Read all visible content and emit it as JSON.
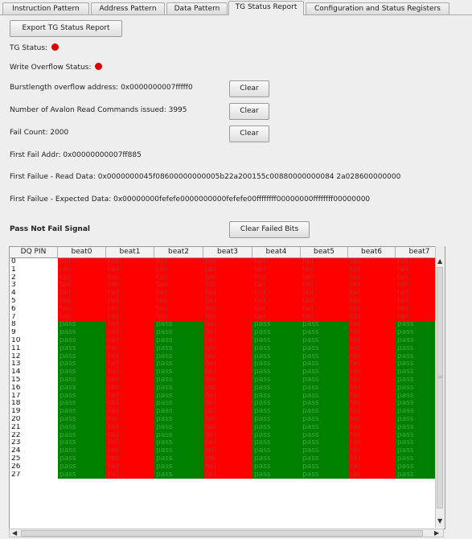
{
  "tabs": [
    {
      "label": "Instruction Pattern"
    },
    {
      "label": "Address Pattern"
    },
    {
      "label": "Data Pattern"
    },
    {
      "label": "TG Status Report"
    },
    {
      "label": "Configuration and Status Registers"
    }
  ],
  "active_tab": "TG Status Report",
  "export_button": "Export TG Status Report",
  "tg_status_label": "TG Status:",
  "tg_status_color": "#dd0000",
  "write_overflow_label": "Write Overflow Status:",
  "write_overflow_color": "#dd0000",
  "burst_label": "Burstlength overflow address: 0x0000000007fffff0",
  "avalon_label": "Number of Avalon Read Commands issued: 3995",
  "fail_count_label": "Fail Count: 2000",
  "clear_label": "Clear",
  "first_fail_addr": "First Fail Addr: 0x00000000007ff885",
  "first_fail_read": "First Failue - Read Data: 0x0000000045f08600000000005b22a200155c00880000000084 2a028600000000",
  "first_fail_expected": "First Failue - Expected Data: 0x00000000fefefe0000000000fefefe00ffffffff00000000ffffffff00000000",
  "pnf_title": "Pass Not Fail Signal",
  "clear_failed_bits": "Clear Failed Bits",
  "grid": {
    "columns": [
      "DQ PIN",
      "beat0",
      "beat1",
      "beat2",
      "beat3",
      "beat4",
      "beat5",
      "beat6",
      "beat7"
    ],
    "rows": [
      {
        "pin": "0",
        "cells": [
          "fail",
          "fail",
          "fail",
          "fail",
          "fail",
          "fail",
          "fail",
          "fail"
        ]
      },
      {
        "pin": "1",
        "cells": [
          "fail",
          "fail",
          "fail",
          "fail",
          "fail",
          "fail",
          "fail",
          "fail"
        ]
      },
      {
        "pin": "2",
        "cells": [
          "fail",
          "fail",
          "fail",
          "fail",
          "fail",
          "fail",
          "fail",
          "fail"
        ]
      },
      {
        "pin": "3",
        "cells": [
          "fail",
          "fail",
          "fail",
          "fail",
          "fail",
          "fail",
          "fail",
          "fail"
        ]
      },
      {
        "pin": "4",
        "cells": [
          "fail",
          "fail",
          "fail",
          "fail",
          "fail",
          "fail",
          "fail",
          "fail"
        ]
      },
      {
        "pin": "5",
        "cells": [
          "fail",
          "fail",
          "fail",
          "fail",
          "fail",
          "fail",
          "fail",
          "fail"
        ]
      },
      {
        "pin": "6",
        "cells": [
          "fail",
          "fail",
          "fail",
          "fail",
          "fail",
          "fail",
          "fail",
          "fail"
        ]
      },
      {
        "pin": "7",
        "cells": [
          "fail",
          "fail",
          "fail",
          "fail",
          "fail",
          "fail",
          "fail",
          "fail"
        ]
      },
      {
        "pin": "8",
        "cells": [
          "pass",
          "fail",
          "pass",
          "fail",
          "pass",
          "pass",
          "fail",
          "pass"
        ]
      },
      {
        "pin": "9",
        "cells": [
          "pass",
          "fail",
          "pass",
          "fail",
          "pass",
          "pass",
          "fail",
          "pass"
        ]
      },
      {
        "pin": "10",
        "cells": [
          "pass",
          "fail",
          "pass",
          "fail",
          "pass",
          "pass",
          "fail",
          "pass"
        ]
      },
      {
        "pin": "11",
        "cells": [
          "pass",
          "fail",
          "pass",
          "fail",
          "pass",
          "pass",
          "fail",
          "pass"
        ]
      },
      {
        "pin": "12",
        "cells": [
          "pass",
          "fail",
          "pass",
          "fail",
          "pass",
          "pass",
          "fail",
          "pass"
        ]
      },
      {
        "pin": "13",
        "cells": [
          "pass",
          "fail",
          "pass",
          "fail",
          "pass",
          "pass",
          "fail",
          "pass"
        ]
      },
      {
        "pin": "14",
        "cells": [
          "pass",
          "fail",
          "pass",
          "fail",
          "pass",
          "pass",
          "fail",
          "pass"
        ]
      },
      {
        "pin": "15",
        "cells": [
          "pass",
          "fail",
          "pass",
          "fail",
          "pass",
          "pass",
          "fail",
          "pass"
        ]
      },
      {
        "pin": "16",
        "cells": [
          "pass",
          "fail",
          "pass",
          "fail",
          "pass",
          "pass",
          "fail",
          "pass"
        ]
      },
      {
        "pin": "17",
        "cells": [
          "pass",
          "fail",
          "pass",
          "fail",
          "pass",
          "pass",
          "fail",
          "pass"
        ]
      },
      {
        "pin": "18",
        "cells": [
          "pass",
          "fail",
          "pass",
          "fail",
          "pass",
          "pass",
          "fail",
          "pass"
        ]
      },
      {
        "pin": "19",
        "cells": [
          "pass",
          "fail",
          "pass",
          "fail",
          "pass",
          "pass",
          "fail",
          "pass"
        ]
      },
      {
        "pin": "20",
        "cells": [
          "pass",
          "fail",
          "pass",
          "fail",
          "pass",
          "pass",
          "fail",
          "pass"
        ]
      },
      {
        "pin": "21",
        "cells": [
          "pass",
          "fail",
          "pass",
          "fail",
          "pass",
          "pass",
          "fail",
          "pass"
        ]
      },
      {
        "pin": "22",
        "cells": [
          "pass",
          "fail",
          "pass",
          "fail",
          "pass",
          "pass",
          "fail",
          "pass"
        ]
      },
      {
        "pin": "23",
        "cells": [
          "pass",
          "fail",
          "pass",
          "fail",
          "pass",
          "pass",
          "fail",
          "pass"
        ]
      },
      {
        "pin": "24",
        "cells": [
          "pass",
          "fail",
          "pass",
          "fail",
          "pass",
          "pass",
          "fail",
          "pass"
        ]
      },
      {
        "pin": "25",
        "cells": [
          "pass",
          "fail",
          "pass",
          "fail",
          "pass",
          "pass",
          "fail",
          "pass"
        ]
      },
      {
        "pin": "26",
        "cells": [
          "pass",
          "fail",
          "pass",
          "fail",
          "pass",
          "pass",
          "fail",
          "pass"
        ]
      },
      {
        "pin": "27",
        "cells": [
          "pass",
          "fail",
          "pass",
          "fail",
          "pass",
          "pass",
          "fail",
          "pass"
        ]
      }
    ]
  },
  "scroll_icons": {
    "up": "▲",
    "down": "▼",
    "left": "◀",
    "right": "▶",
    "grip": "="
  }
}
